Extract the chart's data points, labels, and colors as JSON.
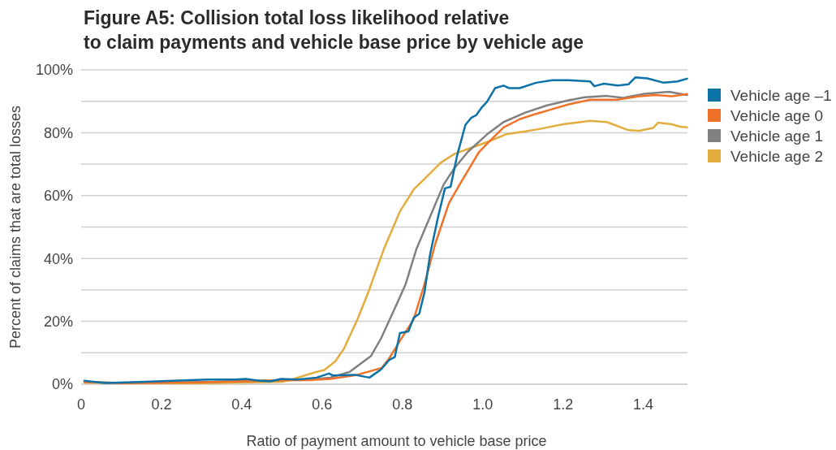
{
  "chart_data": {
    "type": "line",
    "title": "Figure A5: Collision total loss likelihood relative\nto claim payments and vehicle base price by vehicle age",
    "xlabel": "Ratio of payment amount to vehicle base price",
    "ylabel": "Percent of claims that are total losses",
    "xlim": [
      0,
      1.51
    ],
    "xticks": [
      0,
      0.2,
      0.4,
      0.6,
      0.8,
      {
        "value": 1,
        "label": "1.0"
      },
      1.2,
      1.4
    ],
    "ylim": [
      0,
      100
    ],
    "yticks": [
      {
        "value": 0,
        "label": "0%"
      },
      {
        "value": 10,
        "label": null
      },
      {
        "value": 20,
        "label": "20%"
      },
      {
        "value": 30,
        "label": null
      },
      {
        "value": 40,
        "label": "40%"
      },
      {
        "value": 50,
        "label": null
      },
      {
        "value": 60,
        "label": "60%"
      },
      {
        "value": 70,
        "label": null
      },
      {
        "value": 80,
        "label": "80%"
      },
      {
        "value": 90,
        "label": null
      },
      {
        "value": 100,
        "label": "100%"
      }
    ],
    "grid": "y",
    "legend": "right",
    "marker": "none",
    "line_style": "solid",
    "series": [
      {
        "name": "Vehicle age –1",
        "color": "#0b72a8",
        "x": [
          0.008,
          0.059,
          0.147,
          0.228,
          0.316,
          0.383,
          0.41,
          0.444,
          0.471,
          0.498,
          0.539,
          0.586,
          0.617,
          0.627,
          0.681,
          0.718,
          0.747,
          0.767,
          0.781,
          0.794,
          0.815,
          0.828,
          0.842,
          0.855,
          0.869,
          0.889,
          0.906,
          0.92,
          0.937,
          0.957,
          0.971,
          0.984,
          0.998,
          1.011,
          1.031,
          1.052,
          1.065,
          1.092,
          1.133,
          1.173,
          1.214,
          1.268,
          1.278,
          1.302,
          1.336,
          1.363,
          1.38,
          1.41,
          1.451,
          1.485,
          1.509
        ],
        "values": [
          1.1,
          0.4,
          0.7,
          1.1,
          1.5,
          1.5,
          1.7,
          1.1,
          0.9,
          1.7,
          1.5,
          2.1,
          3.4,
          2.8,
          3.0,
          2.1,
          4.7,
          7.7,
          8.6,
          16.3,
          16.8,
          21.1,
          22.4,
          29.2,
          41.3,
          53.3,
          62.3,
          62.8,
          73.1,
          82.5,
          84.7,
          85.6,
          88.1,
          89.9,
          94.2,
          95.0,
          94.2,
          94.2,
          95.9,
          96.7,
          96.7,
          96.3,
          94.8,
          95.6,
          95.0,
          95.4,
          97.6,
          97.3,
          95.9,
          96.3,
          97.2
        ]
      },
      {
        "name": "Vehicle age 0",
        "color": "#f07229",
        "x": [
          0.008,
          0.1,
          0.3,
          0.5,
          0.566,
          0.62,
          0.688,
          0.749,
          0.767,
          0.794,
          0.828,
          0.855,
          0.882,
          0.916,
          0.943,
          0.971,
          0.991,
          1.018,
          1.052,
          1.092,
          1.133,
          1.173,
          1.214,
          1.268,
          1.336,
          1.39,
          1.431,
          1.471,
          1.509
        ],
        "values": [
          0.7,
          0.3,
          0.6,
          1.2,
          1.3,
          1.7,
          3.0,
          5.2,
          8.2,
          13.8,
          20.6,
          31.8,
          44.7,
          57.6,
          63.6,
          69.6,
          73.9,
          77.4,
          81.7,
          84.3,
          86.0,
          87.5,
          89.0,
          90.5,
          90.5,
          91.6,
          92.0,
          91.6,
          92.3
        ]
      },
      {
        "name": "Vehicle age 1",
        "color": "#808080",
        "x": [
          0.008,
          0.1,
          0.3,
          0.5,
          0.566,
          0.62,
          0.668,
          0.722,
          0.747,
          0.781,
          0.808,
          0.835,
          0.869,
          0.903,
          0.93,
          0.963,
          1.011,
          1.052,
          1.106,
          1.16,
          1.214,
          1.254,
          1.309,
          1.349,
          1.403,
          1.464,
          1.509
        ],
        "values": [
          0.8,
          0.4,
          0.7,
          1.3,
          1.5,
          2.1,
          3.9,
          9.0,
          14.6,
          24.1,
          31.8,
          43.0,
          53.3,
          63.6,
          68.8,
          73.9,
          79.5,
          83.4,
          86.4,
          88.7,
          90.3,
          91.3,
          91.7,
          91.1,
          92.4,
          93.0,
          92.0
        ]
      },
      {
        "name": "Vehicle age 2",
        "color": "#e3ac3e",
        "x": [
          0.008,
          0.1,
          0.3,
          0.5,
          0.519,
          0.552,
          0.586,
          0.606,
          0.633,
          0.654,
          0.688,
          0.715,
          0.727,
          0.754,
          0.794,
          0.828,
          0.862,
          0.896,
          0.93,
          0.971,
          1.011,
          1.058,
          1.106,
          1.146,
          1.2,
          1.268,
          1.309,
          1.363,
          1.39,
          1.424,
          1.437,
          1.471,
          1.492,
          1.509
        ],
        "values": [
          0.5,
          0.3,
          0.3,
          0.8,
          1.3,
          2.6,
          3.9,
          4.5,
          7.3,
          11.2,
          20.6,
          29.2,
          33.5,
          43.0,
          55.0,
          61.9,
          66.2,
          70.5,
          73.3,
          75.2,
          77.0,
          79.5,
          80.4,
          81.3,
          82.7,
          83.8,
          83.4,
          80.8,
          80.6,
          81.5,
          83.2,
          82.7,
          81.9,
          81.7
        ]
      }
    ]
  }
}
